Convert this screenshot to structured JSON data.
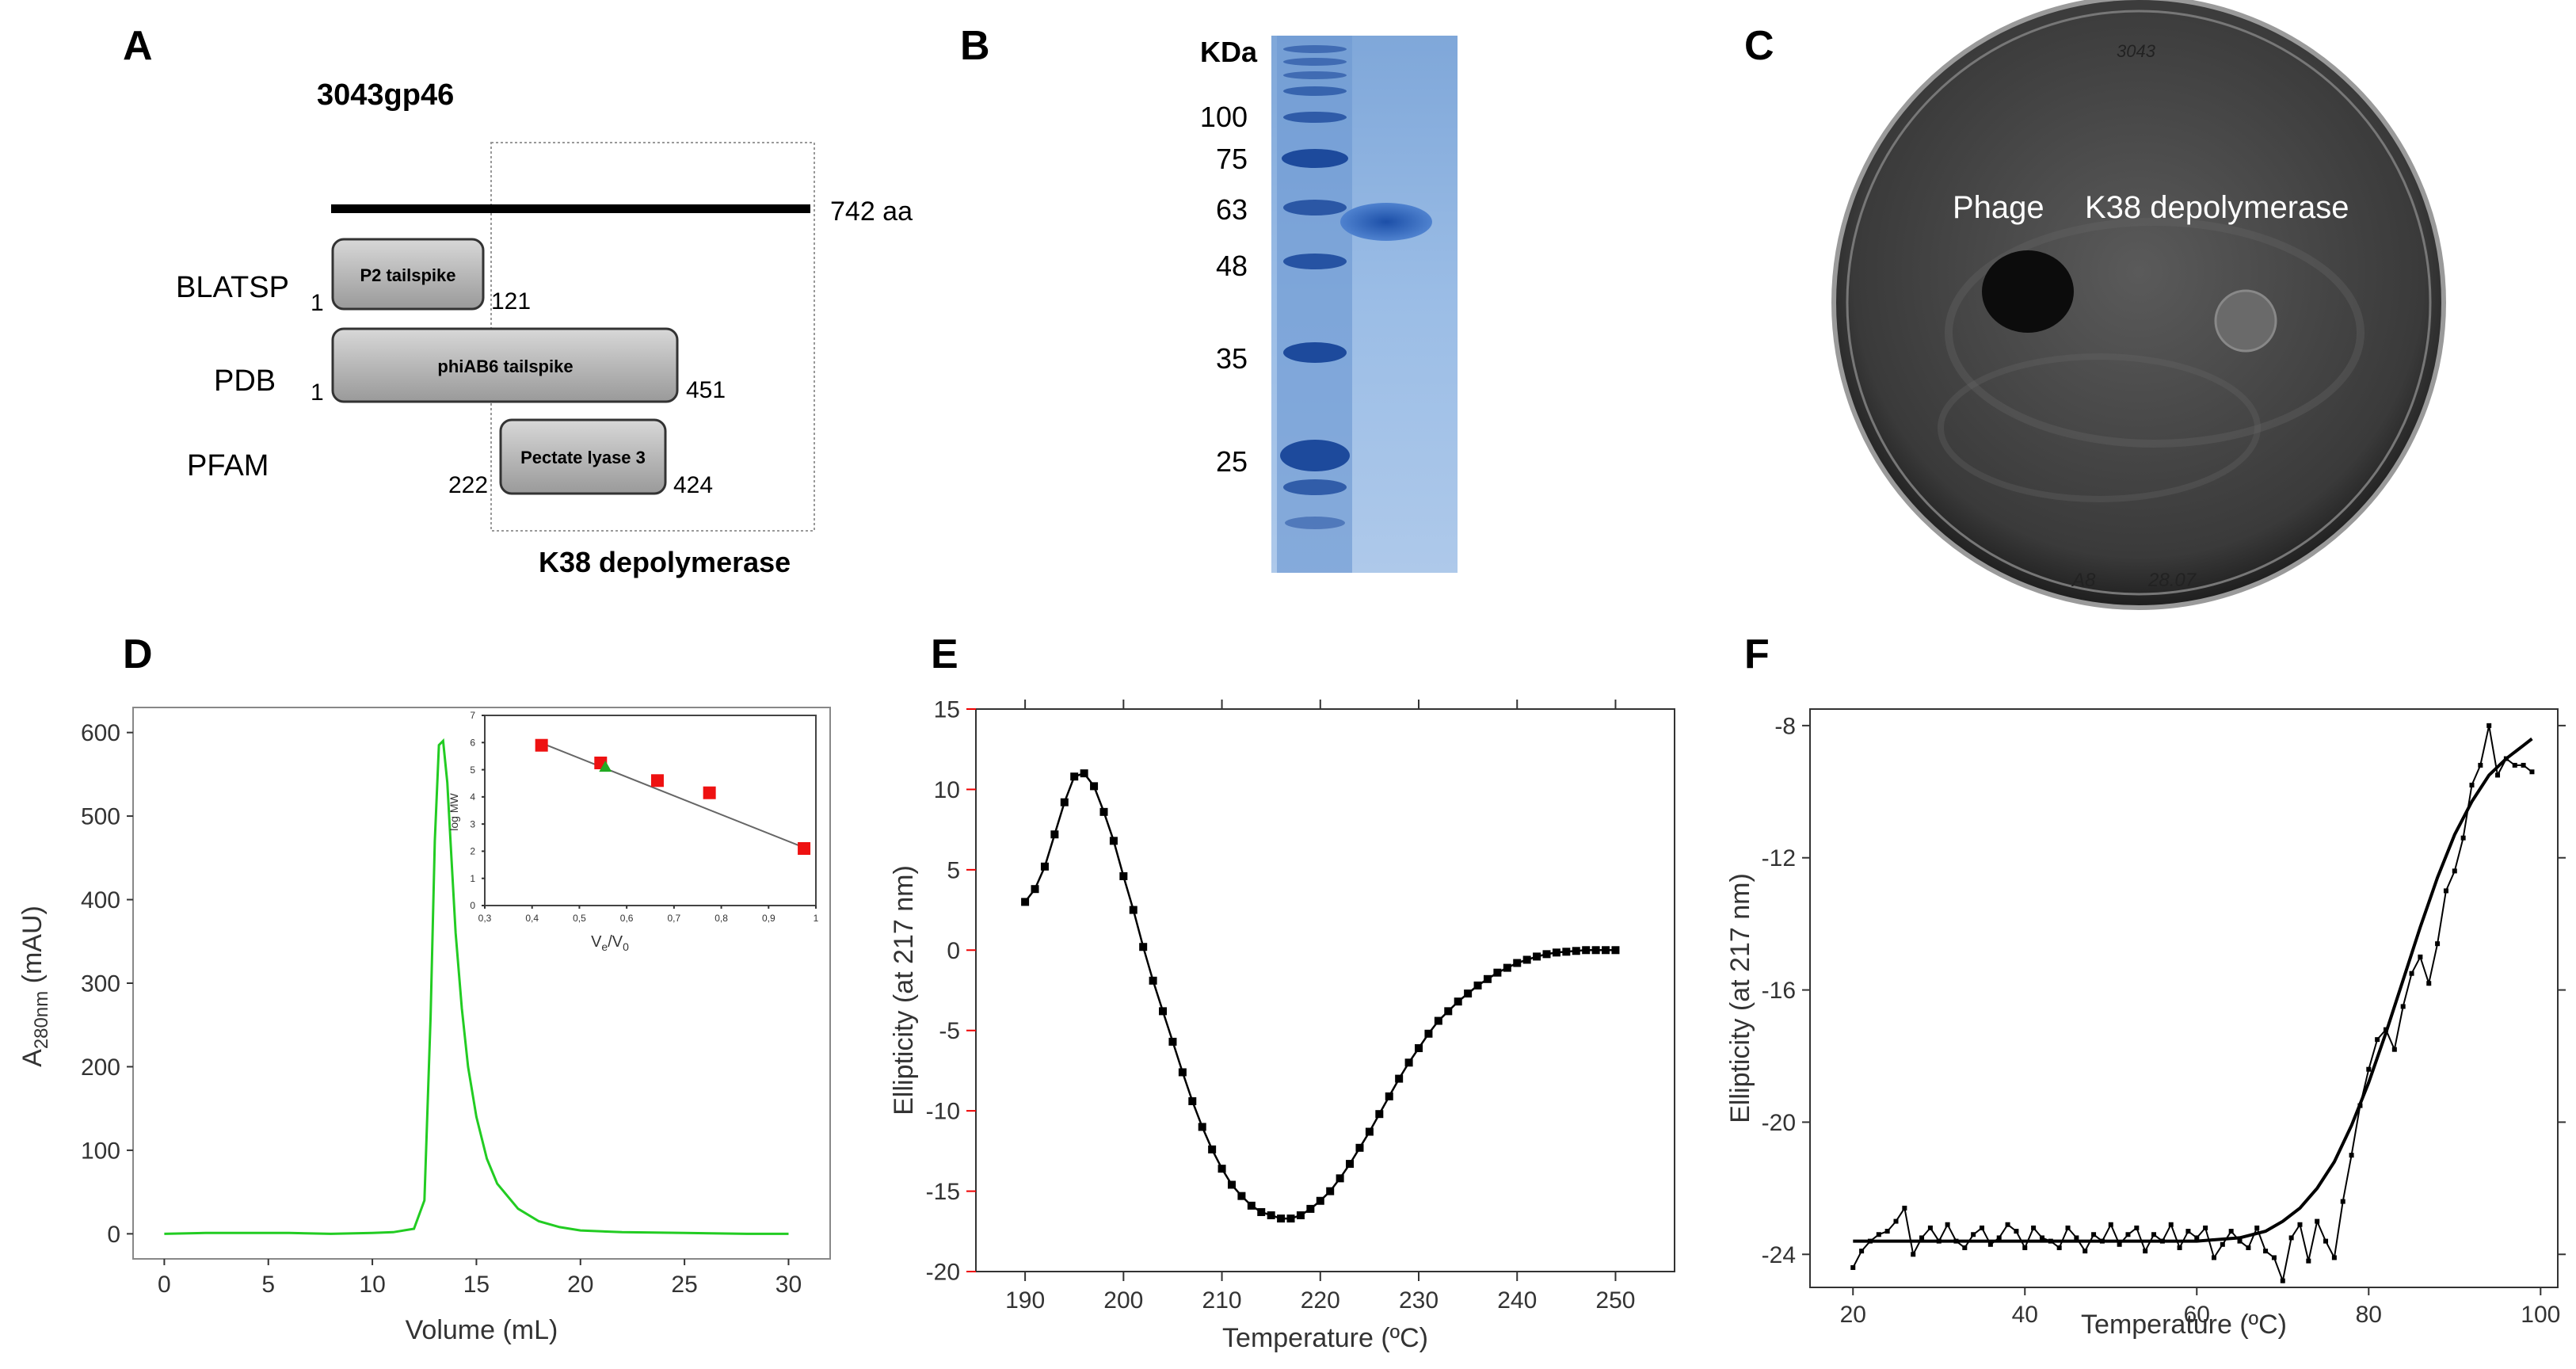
{
  "panel_labels": [
    "A",
    "B",
    "C",
    "D",
    "E",
    "F"
  ],
  "panelA": {
    "title": "3043gp46",
    "length_label": "742 aa",
    "region_label": "K38 depolymerase",
    "rows": [
      {
        "db": "BLATSP",
        "domain": "P2 tailspike",
        "start": "1",
        "end": "121"
      },
      {
        "db": "PDB",
        "domain": "phiAB6 tailspike",
        "start": "1",
        "end": "451"
      },
      {
        "db": "PFAM",
        "domain": "Pectate lyase 3",
        "start": "222",
        "end": "424"
      }
    ]
  },
  "panelB": {
    "unit_label": "KDa",
    "markers": [
      "100",
      "75",
      "63",
      "48",
      "35",
      "25"
    ]
  },
  "panelC": {
    "labels": [
      "Phage",
      "K38 depolymerase"
    ],
    "plate_notes": [
      "3043",
      "A8",
      "28.07"
    ]
  },
  "chart_data": [
    {
      "id": "D",
      "type": "line",
      "title": "",
      "xlabel": "Volume (mL)",
      "ylabel": "A280nm (mAU)",
      "ylabel_main": "A",
      "ylabel_sub": "280nm",
      "ylabel_rest": " (mAU)",
      "xlim": [
        -1.5,
        32
      ],
      "ylim": [
        -30,
        630
      ],
      "xticks": [
        "0",
        "5",
        "10",
        "15",
        "20",
        "25",
        "30"
      ],
      "yticks": [
        "0",
        "100",
        "200",
        "300",
        "400",
        "500",
        "600"
      ],
      "series": [
        {
          "name": "A280",
          "color": "#22cc22",
          "x": [
            0,
            2,
            4,
            6,
            8,
            10,
            11,
            12,
            12.5,
            12.8,
            13.0,
            13.2,
            13.4,
            13.6,
            13.8,
            14.0,
            14.3,
            14.6,
            15.0,
            15.5,
            16,
            17,
            18,
            19,
            20,
            22,
            25,
            28,
            30
          ],
          "y": [
            0,
            1,
            1,
            1,
            0,
            1,
            2,
            6,
            40,
            260,
            470,
            585,
            590,
            540,
            450,
            360,
            270,
            200,
            140,
            90,
            60,
            30,
            15,
            8,
            4,
            2,
            1,
            0,
            0
          ]
        }
      ]
    },
    {
      "id": "D-inset",
      "type": "scatter",
      "xlabel": "Ve/V0",
      "xlabel_main": "V",
      "xlabel_sub1": "e",
      "xlabel_mid": "/V",
      "xlabel_sub2": "0",
      "ylabel": "log MW",
      "xlim": [
        0.3,
        1.0
      ],
      "ylim": [
        0,
        7
      ],
      "xticks": [
        "0,3",
        "0,4",
        "0,5",
        "0,6",
        "0,7",
        "0,8",
        "0,9",
        "1"
      ],
      "yticks": [
        "0",
        "1",
        "2",
        "3",
        "4",
        "5",
        "6",
        "7"
      ],
      "points": [
        {
          "x": 0.42,
          "y": 5.9,
          "color": "#ee1111"
        },
        {
          "x": 0.545,
          "y": 5.25,
          "color": "#ee1111"
        },
        {
          "x": 0.555,
          "y": 5.1,
          "color": "#22aa22"
        },
        {
          "x": 0.665,
          "y": 4.6,
          "color": "#ee1111"
        },
        {
          "x": 0.775,
          "y": 4.15,
          "color": "#ee1111"
        },
        {
          "x": 0.975,
          "y": 2.1,
          "color": "#ee1111"
        }
      ],
      "fit": {
        "x": [
          0.41,
          0.98
        ],
        "y": [
          6.05,
          2.1
        ]
      }
    },
    {
      "id": "E",
      "type": "line",
      "title": "",
      "xlabel": "Temperature (ºC)",
      "ylabel": "Ellipticity (at 217 nm)",
      "xlim": [
        185,
        256
      ],
      "ylim": [
        -20,
        15
      ],
      "xticks": [
        "190",
        "200",
        "210",
        "220",
        "230",
        "240",
        "250"
      ],
      "yticks": [
        "15",
        "10",
        "5",
        "0",
        "-5",
        "-10",
        "-15",
        "-20"
      ],
      "series": [
        {
          "name": "CD spectrum",
          "color": "#000000",
          "x": [
            190,
            191,
            192,
            193,
            194,
            195,
            196,
            197,
            198,
            199,
            200,
            201,
            202,
            203,
            204,
            205,
            206,
            207,
            208,
            209,
            210,
            211,
            212,
            213,
            214,
            215,
            216,
            217,
            218,
            219,
            220,
            221,
            222,
            223,
            224,
            225,
            226,
            227,
            228,
            229,
            230,
            231,
            232,
            233,
            234,
            235,
            236,
            237,
            238,
            239,
            240,
            241,
            242,
            243,
            244,
            245,
            246,
            247,
            248,
            249,
            250
          ],
          "y": [
            3,
            3.8,
            5.2,
            7.2,
            9.2,
            10.8,
            11,
            10.2,
            8.6,
            6.8,
            4.6,
            2.5,
            0.2,
            -1.9,
            -3.8,
            -5.7,
            -7.6,
            -9.4,
            -11,
            -12.4,
            -13.6,
            -14.6,
            -15.3,
            -15.9,
            -16.3,
            -16.5,
            -16.7,
            -16.7,
            -16.5,
            -16.1,
            -15.6,
            -15,
            -14.2,
            -13.3,
            -12.3,
            -11.3,
            -10.2,
            -9.1,
            -8,
            -7,
            -6.1,
            -5.2,
            -4.4,
            -3.8,
            -3.2,
            -2.7,
            -2.2,
            -1.8,
            -1.4,
            -1.1,
            -0.8,
            -0.6,
            -0.4,
            -0.25,
            -0.15,
            -0.1,
            -0.05,
            0,
            0,
            0,
            0
          ]
        }
      ]
    },
    {
      "id": "F",
      "type": "line",
      "title": "",
      "xlabel": "Temperature (ºC)",
      "ylabel": "Ellipticity (at 217 nm)",
      "xlim": [
        15,
        102
      ],
      "ylim": [
        -25,
        -7.5
      ],
      "xticks": [
        "20",
        "40",
        "60",
        "80",
        "100"
      ],
      "yticks": [
        "-8",
        "-12",
        "-16",
        "-20",
        "-24"
      ],
      "series": [
        {
          "name": "data",
          "color": "#000000",
          "x": [
            20,
            21,
            22,
            23,
            24,
            25,
            26,
            27,
            28,
            29,
            30,
            31,
            32,
            33,
            34,
            35,
            36,
            37,
            38,
            39,
            40,
            41,
            42,
            43,
            44,
            45,
            46,
            47,
            48,
            49,
            50,
            51,
            52,
            53,
            54,
            55,
            56,
            57,
            58,
            59,
            60,
            61,
            62,
            63,
            64,
            65,
            66,
            67,
            68,
            69,
            70,
            71,
            72,
            73,
            74,
            75,
            76,
            77,
            78,
            79,
            80,
            81,
            82,
            83,
            84,
            85,
            86,
            87,
            88,
            89,
            90,
            91,
            92,
            93,
            94,
            95,
            96,
            97,
            98,
            99
          ],
          "y": [
            -24.4,
            -23.9,
            -23.6,
            -23.4,
            -23.3,
            -23.0,
            -22.6,
            -24.0,
            -23.5,
            -23.2,
            -23.6,
            -23.1,
            -23.6,
            -23.8,
            -23.4,
            -23.2,
            -23.7,
            -23.5,
            -23.1,
            -23.3,
            -23.8,
            -23.2,
            -23.5,
            -23.6,
            -23.8,
            -23.2,
            -23.5,
            -23.9,
            -23.4,
            -23.6,
            -23.1,
            -23.7,
            -23.4,
            -23.2,
            -23.9,
            -23.4,
            -23.6,
            -23.1,
            -23.8,
            -23.3,
            -23.5,
            -23.2,
            -24.1,
            -23.7,
            -23.3,
            -23.6,
            -23.8,
            -23.2,
            -23.9,
            -24.1,
            -24.8,
            -23.5,
            -23.1,
            -24.2,
            -23.0,
            -23.6,
            -24.1,
            -22.4,
            -21.0,
            -19.5,
            -18.4,
            -17.5,
            -17.2,
            -17.8,
            -16.5,
            -15.5,
            -15.0,
            -15.8,
            -14.6,
            -13.0,
            -12.4,
            -11.4,
            -9.8,
            -9.2,
            -8.0,
            -9.5,
            -9.0,
            -9.2,
            -9.2,
            -9.4
          ]
        },
        {
          "name": "fit",
          "color": "#000000",
          "x": [
            20,
            30,
            40,
            50,
            55,
            60,
            65,
            68,
            70,
            72,
            74,
            76,
            78,
            80,
            82,
            84,
            86,
            88,
            90,
            92,
            94,
            96,
            98,
            99
          ],
          "y": [
            -23.6,
            -23.6,
            -23.6,
            -23.6,
            -23.6,
            -23.6,
            -23.5,
            -23.3,
            -23.0,
            -22.6,
            -22.0,
            -21.2,
            -20.1,
            -18.8,
            -17.3,
            -15.7,
            -14.1,
            -12.6,
            -11.3,
            -10.3,
            -9.5,
            -9.0,
            -8.6,
            -8.4
          ]
        }
      ]
    }
  ]
}
